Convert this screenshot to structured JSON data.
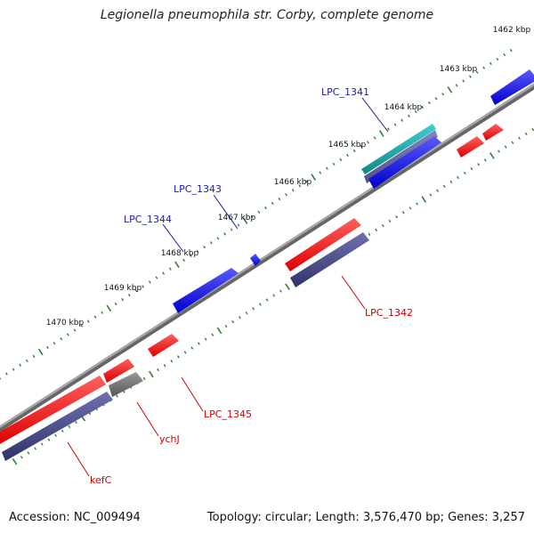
{
  "title": "Legionella pneumophila str. Corby, complete genome",
  "footer": {
    "accession": "Accession: NC_009494",
    "stats": "Topology: circular; Length: 3,576,470 bp; Genes: 3,257"
  },
  "colors": {
    "backbone": "#888888",
    "forward_cds": "#1a1aff",
    "reverse_cds": "#ff1a1a",
    "forward_gene": "#4a4a8a",
    "reverse_gene": "#4a4a8a",
    "rna": "#20b2b2",
    "pseudo": "#707070",
    "forward_label": "#1a1aaa",
    "reverse_label": "#cc0000",
    "tick": "#2e7d32"
  },
  "ticks": [
    {
      "label": "1462 kbp"
    },
    {
      "label": "1463 kbp"
    },
    {
      "label": "1464 kbp"
    },
    {
      "label": "1465 kbp"
    },
    {
      "label": "1466 kbp"
    },
    {
      "label": "1467 kbp"
    },
    {
      "label": "1468 kbp"
    },
    {
      "label": "1469 kbp"
    },
    {
      "label": "1470 kbp"
    }
  ],
  "gene_labels": [
    {
      "text": "LPC_1341",
      "strand": "forward"
    },
    {
      "text": "LPC_1343",
      "strand": "forward"
    },
    {
      "text": "LPC_1344",
      "strand": "forward"
    },
    {
      "text": "LPC_1342",
      "strand": "reverse"
    },
    {
      "text": "LPC_1345",
      "strand": "reverse"
    },
    {
      "text": "ychJ",
      "strand": "reverse"
    },
    {
      "text": "kefC",
      "strand": "reverse"
    }
  ]
}
